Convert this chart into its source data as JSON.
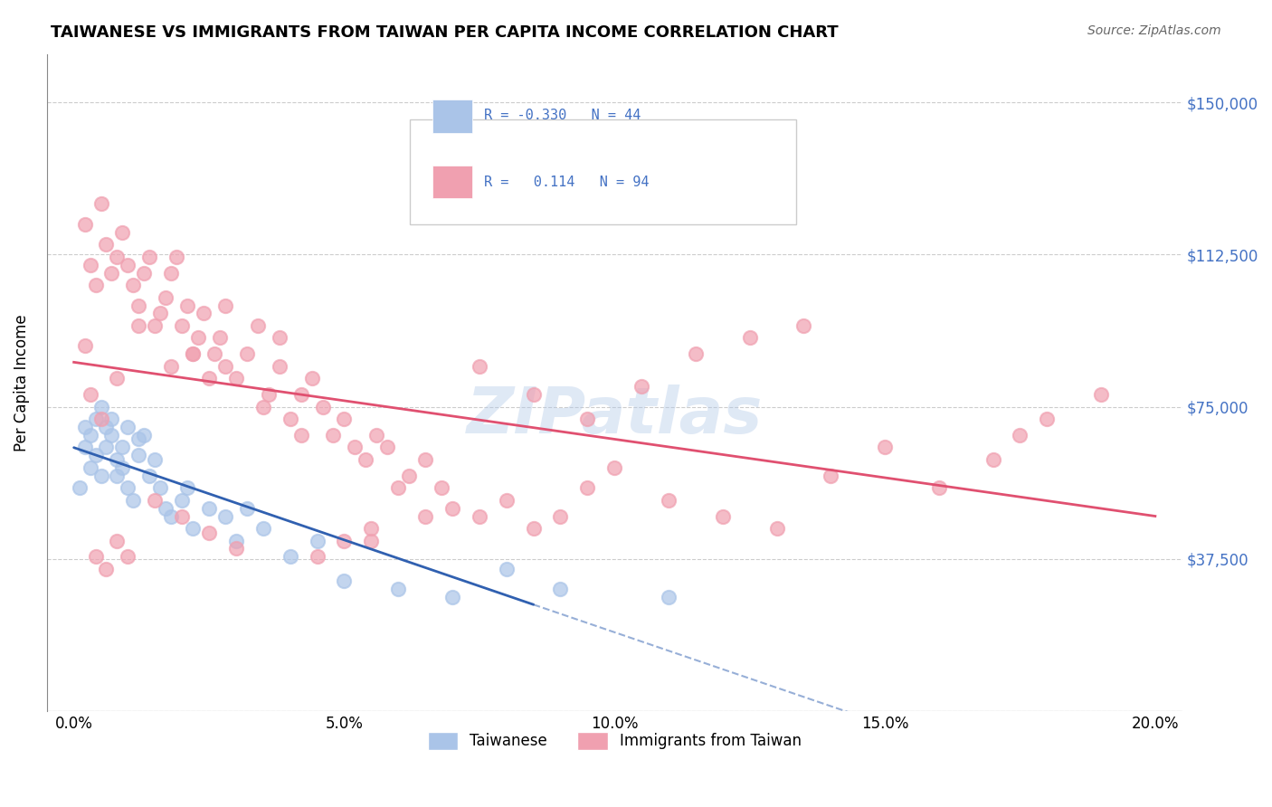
{
  "title": "TAIWANESE VS IMMIGRANTS FROM TAIWAN PER CAPITA INCOME CORRELATION CHART",
  "source": "Source: ZipAtlas.com",
  "ylabel": "Per Capita Income",
  "xlabel_ticks": [
    "0.0%",
    "5.0%",
    "10.0%",
    "15.0%",
    "20.0%"
  ],
  "xlabel_vals": [
    0.0,
    0.05,
    0.1,
    0.15,
    0.2
  ],
  "yticks": [
    0,
    37500,
    75000,
    112500,
    150000
  ],
  "ytick_labels": [
    "",
    "$37,500",
    "$75,000",
    "$112,500",
    "$150,000"
  ],
  "ylim": [
    0,
    162000
  ],
  "xlim": [
    -0.005,
    0.205
  ],
  "watermark": "ZIPatlas",
  "legend_R1": "R = -0.330",
  "legend_N1": "N = 44",
  "legend_R2": "R =  0.114",
  "legend_N2": "N = 94",
  "blue_color": "#aac4e8",
  "pink_color": "#f0a0b0",
  "blue_line_color": "#3060b0",
  "pink_line_color": "#e05070",
  "blue_R": -0.33,
  "pink_R": 0.114,
  "taiwanese_x": [
    0.001,
    0.002,
    0.002,
    0.003,
    0.003,
    0.004,
    0.004,
    0.005,
    0.005,
    0.006,
    0.006,
    0.007,
    0.007,
    0.008,
    0.008,
    0.009,
    0.009,
    0.01,
    0.01,
    0.011,
    0.012,
    0.012,
    0.013,
    0.014,
    0.015,
    0.016,
    0.017,
    0.018,
    0.02,
    0.021,
    0.022,
    0.025,
    0.028,
    0.03,
    0.032,
    0.035,
    0.04,
    0.045,
    0.05,
    0.06,
    0.07,
    0.08,
    0.09,
    0.11
  ],
  "taiwanese_y": [
    55000,
    70000,
    65000,
    68000,
    60000,
    72000,
    63000,
    75000,
    58000,
    70000,
    65000,
    68000,
    72000,
    62000,
    58000,
    65000,
    60000,
    55000,
    70000,
    52000,
    67000,
    63000,
    68000,
    58000,
    62000,
    55000,
    50000,
    48000,
    52000,
    55000,
    45000,
    50000,
    48000,
    42000,
    50000,
    45000,
    38000,
    42000,
    32000,
    30000,
    28000,
    35000,
    30000,
    28000
  ],
  "immigrants_x": [
    0.002,
    0.003,
    0.004,
    0.005,
    0.006,
    0.007,
    0.008,
    0.009,
    0.01,
    0.011,
    0.012,
    0.013,
    0.014,
    0.015,
    0.016,
    0.017,
    0.018,
    0.019,
    0.02,
    0.021,
    0.022,
    0.023,
    0.024,
    0.025,
    0.026,
    0.027,
    0.028,
    0.03,
    0.032,
    0.034,
    0.036,
    0.038,
    0.04,
    0.042,
    0.044,
    0.046,
    0.048,
    0.05,
    0.052,
    0.054,
    0.056,
    0.058,
    0.06,
    0.062,
    0.065,
    0.068,
    0.07,
    0.075,
    0.08,
    0.085,
    0.09,
    0.095,
    0.1,
    0.11,
    0.12,
    0.13,
    0.14,
    0.15,
    0.16,
    0.17,
    0.175,
    0.18,
    0.19,
    0.05,
    0.055,
    0.065,
    0.022,
    0.035,
    0.042,
    0.038,
    0.028,
    0.018,
    0.012,
    0.008,
    0.005,
    0.003,
    0.002,
    0.075,
    0.085,
    0.095,
    0.105,
    0.115,
    0.125,
    0.135,
    0.055,
    0.045,
    0.03,
    0.025,
    0.02,
    0.015,
    0.01,
    0.008,
    0.006,
    0.004
  ],
  "immigrants_y": [
    120000,
    110000,
    105000,
    125000,
    115000,
    108000,
    112000,
    118000,
    110000,
    105000,
    100000,
    108000,
    112000,
    95000,
    98000,
    102000,
    108000,
    112000,
    95000,
    100000,
    88000,
    92000,
    98000,
    82000,
    88000,
    92000,
    85000,
    82000,
    88000,
    95000,
    78000,
    85000,
    72000,
    78000,
    82000,
    75000,
    68000,
    72000,
    65000,
    62000,
    68000,
    65000,
    55000,
    58000,
    62000,
    55000,
    50000,
    48000,
    52000,
    45000,
    48000,
    55000,
    60000,
    52000,
    48000,
    45000,
    58000,
    65000,
    55000,
    62000,
    68000,
    72000,
    78000,
    42000,
    45000,
    48000,
    88000,
    75000,
    68000,
    92000,
    100000,
    85000,
    95000,
    82000,
    72000,
    78000,
    90000,
    85000,
    78000,
    72000,
    80000,
    88000,
    92000,
    95000,
    42000,
    38000,
    40000,
    44000,
    48000,
    52000,
    38000,
    42000,
    35000,
    38000
  ]
}
